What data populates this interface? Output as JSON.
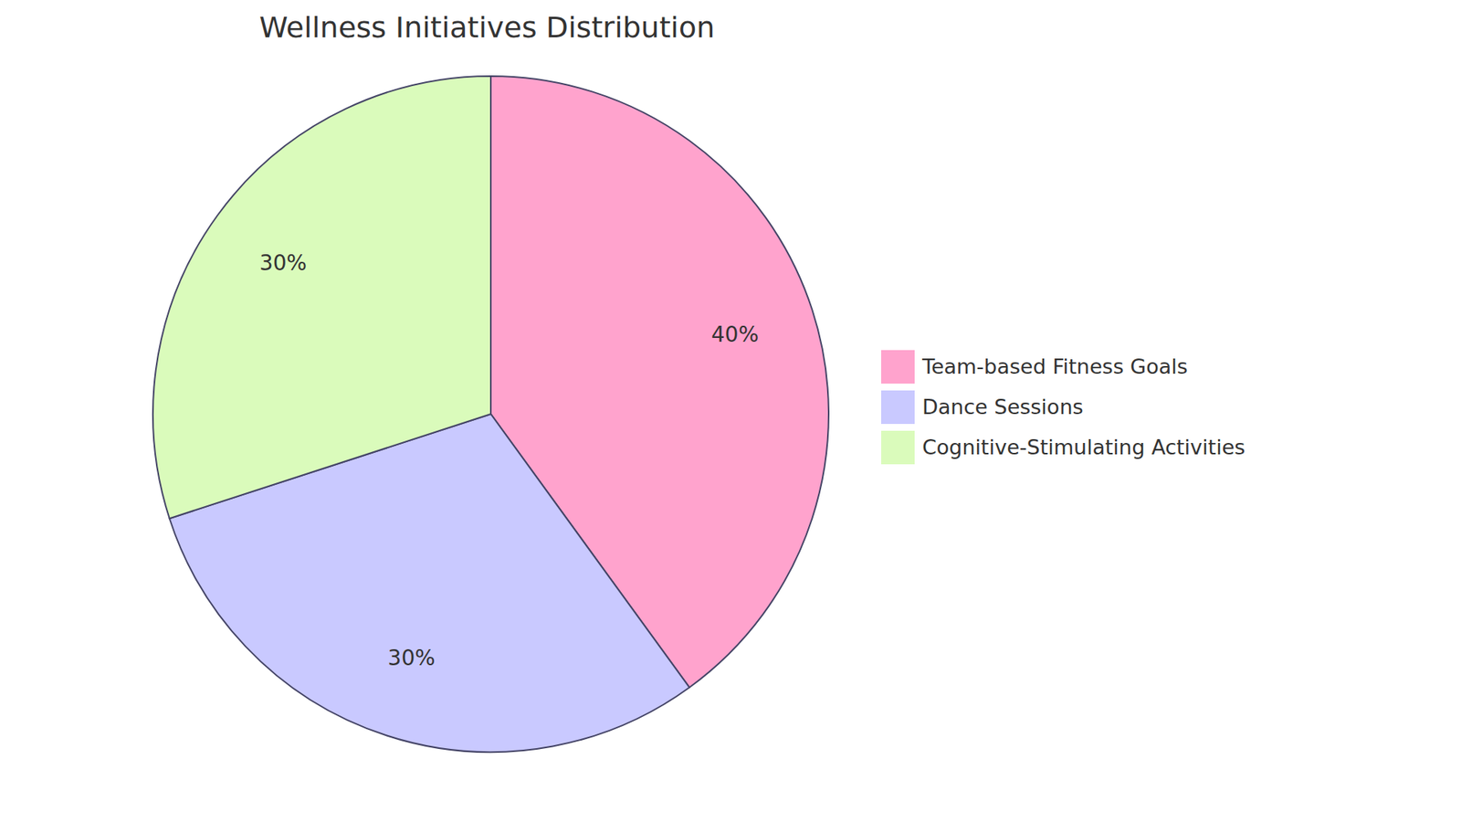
{
  "chart_data": {
    "type": "pie",
    "title": "Wellness Initiatives Distribution",
    "categories": [
      "Team-based Fitness Goals",
      "Dance Sessions",
      "Cognitive-Stimulating Activities"
    ],
    "values": [
      40,
      30,
      30
    ],
    "value_labels": [
      "40%",
      "30%",
      "30%"
    ],
    "colors": [
      "#ffa3cd",
      "#c9c9ff",
      "#dafbbb"
    ],
    "data_labels": true,
    "legend": "right"
  }
}
